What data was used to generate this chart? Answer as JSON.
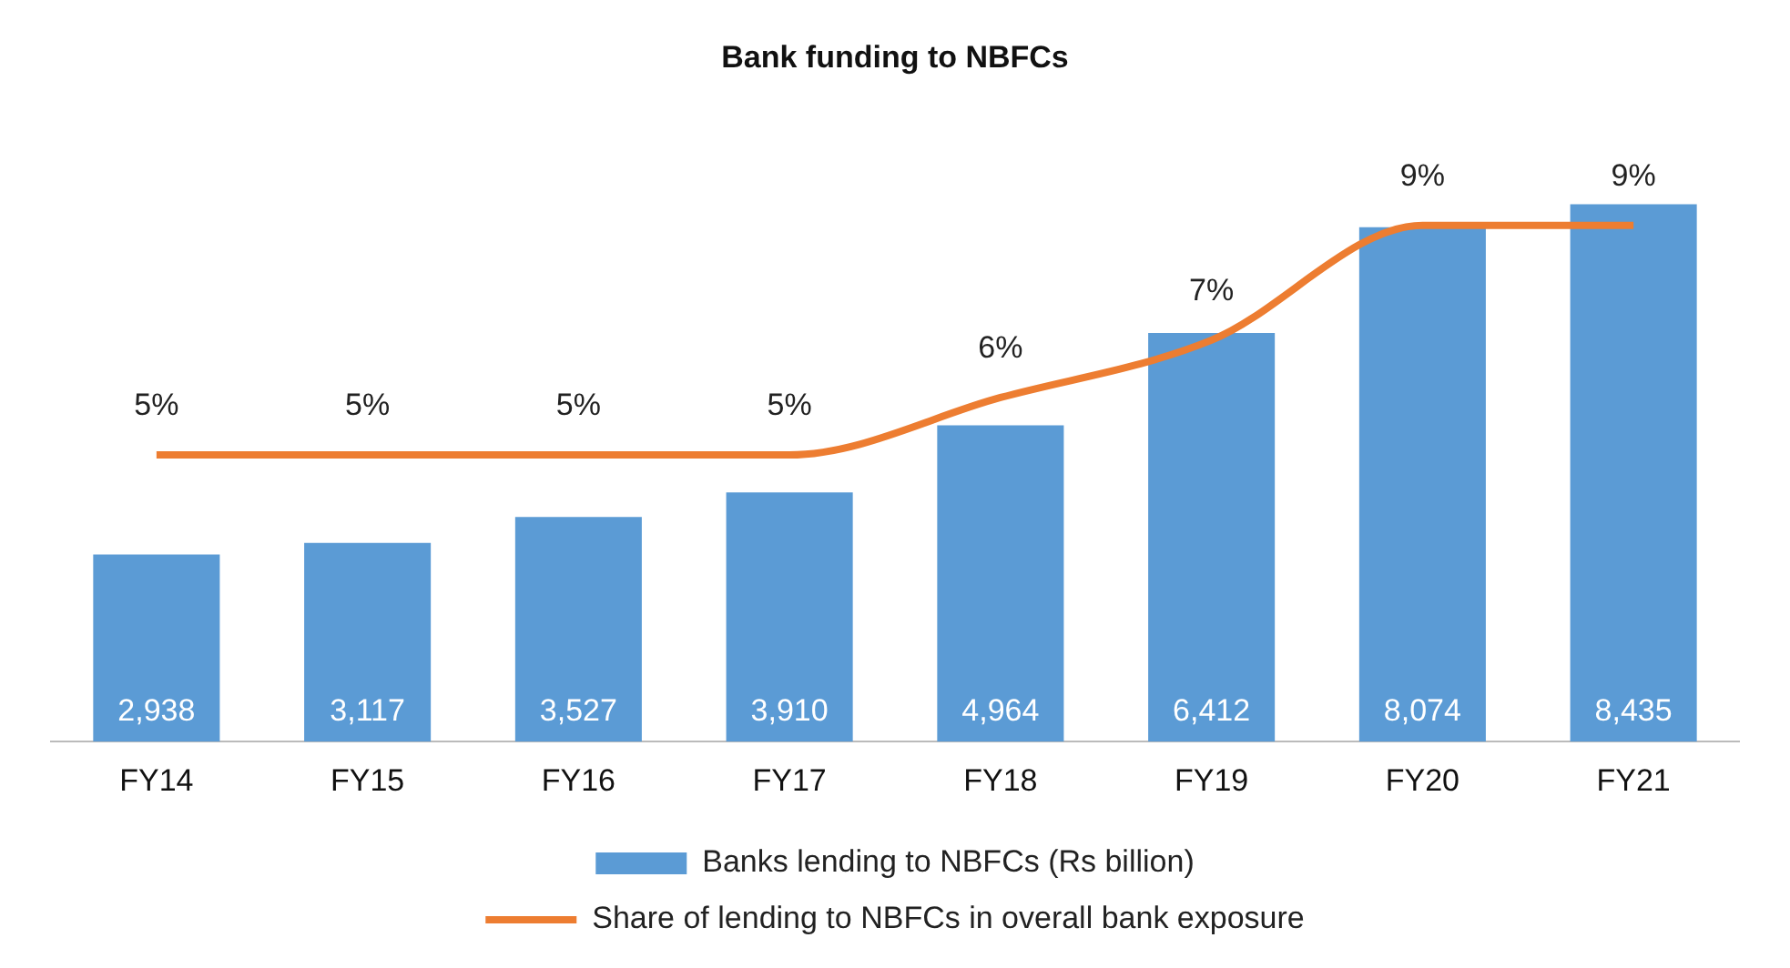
{
  "chart_data": {
    "type": "bar",
    "title": "Bank funding to NBFCs",
    "categories": [
      "FY14",
      "FY15",
      "FY16",
      "FY17",
      "FY18",
      "FY19",
      "FY20",
      "FY21"
    ],
    "series": [
      {
        "name": "Banks lending to NBFCs (Rs billion)",
        "color": "#5b9bd5",
        "values": [
          2938,
          3117,
          3527,
          3910,
          4964,
          6412,
          8074,
          8435
        ],
        "value_labels": [
          "2,938",
          "3,117",
          "3,527",
          "3,910",
          "4,964",
          "6,412",
          "8,074",
          "8,435"
        ]
      },
      {
        "name": "Share of lending to NBFCs in overall bank exposure",
        "type": "line",
        "axis": "y2",
        "color": "#ed7d31",
        "marker": "none",
        "values": [
          5,
          5,
          5,
          5,
          6,
          7,
          9,
          9
        ],
        "value_labels": [
          "5%",
          "5%",
          "5%",
          "5%",
          "6%",
          "7%",
          "9%",
          "9%"
        ]
      }
    ],
    "grid": false,
    "legend": "bottom",
    "tick_labels": "x"
  }
}
